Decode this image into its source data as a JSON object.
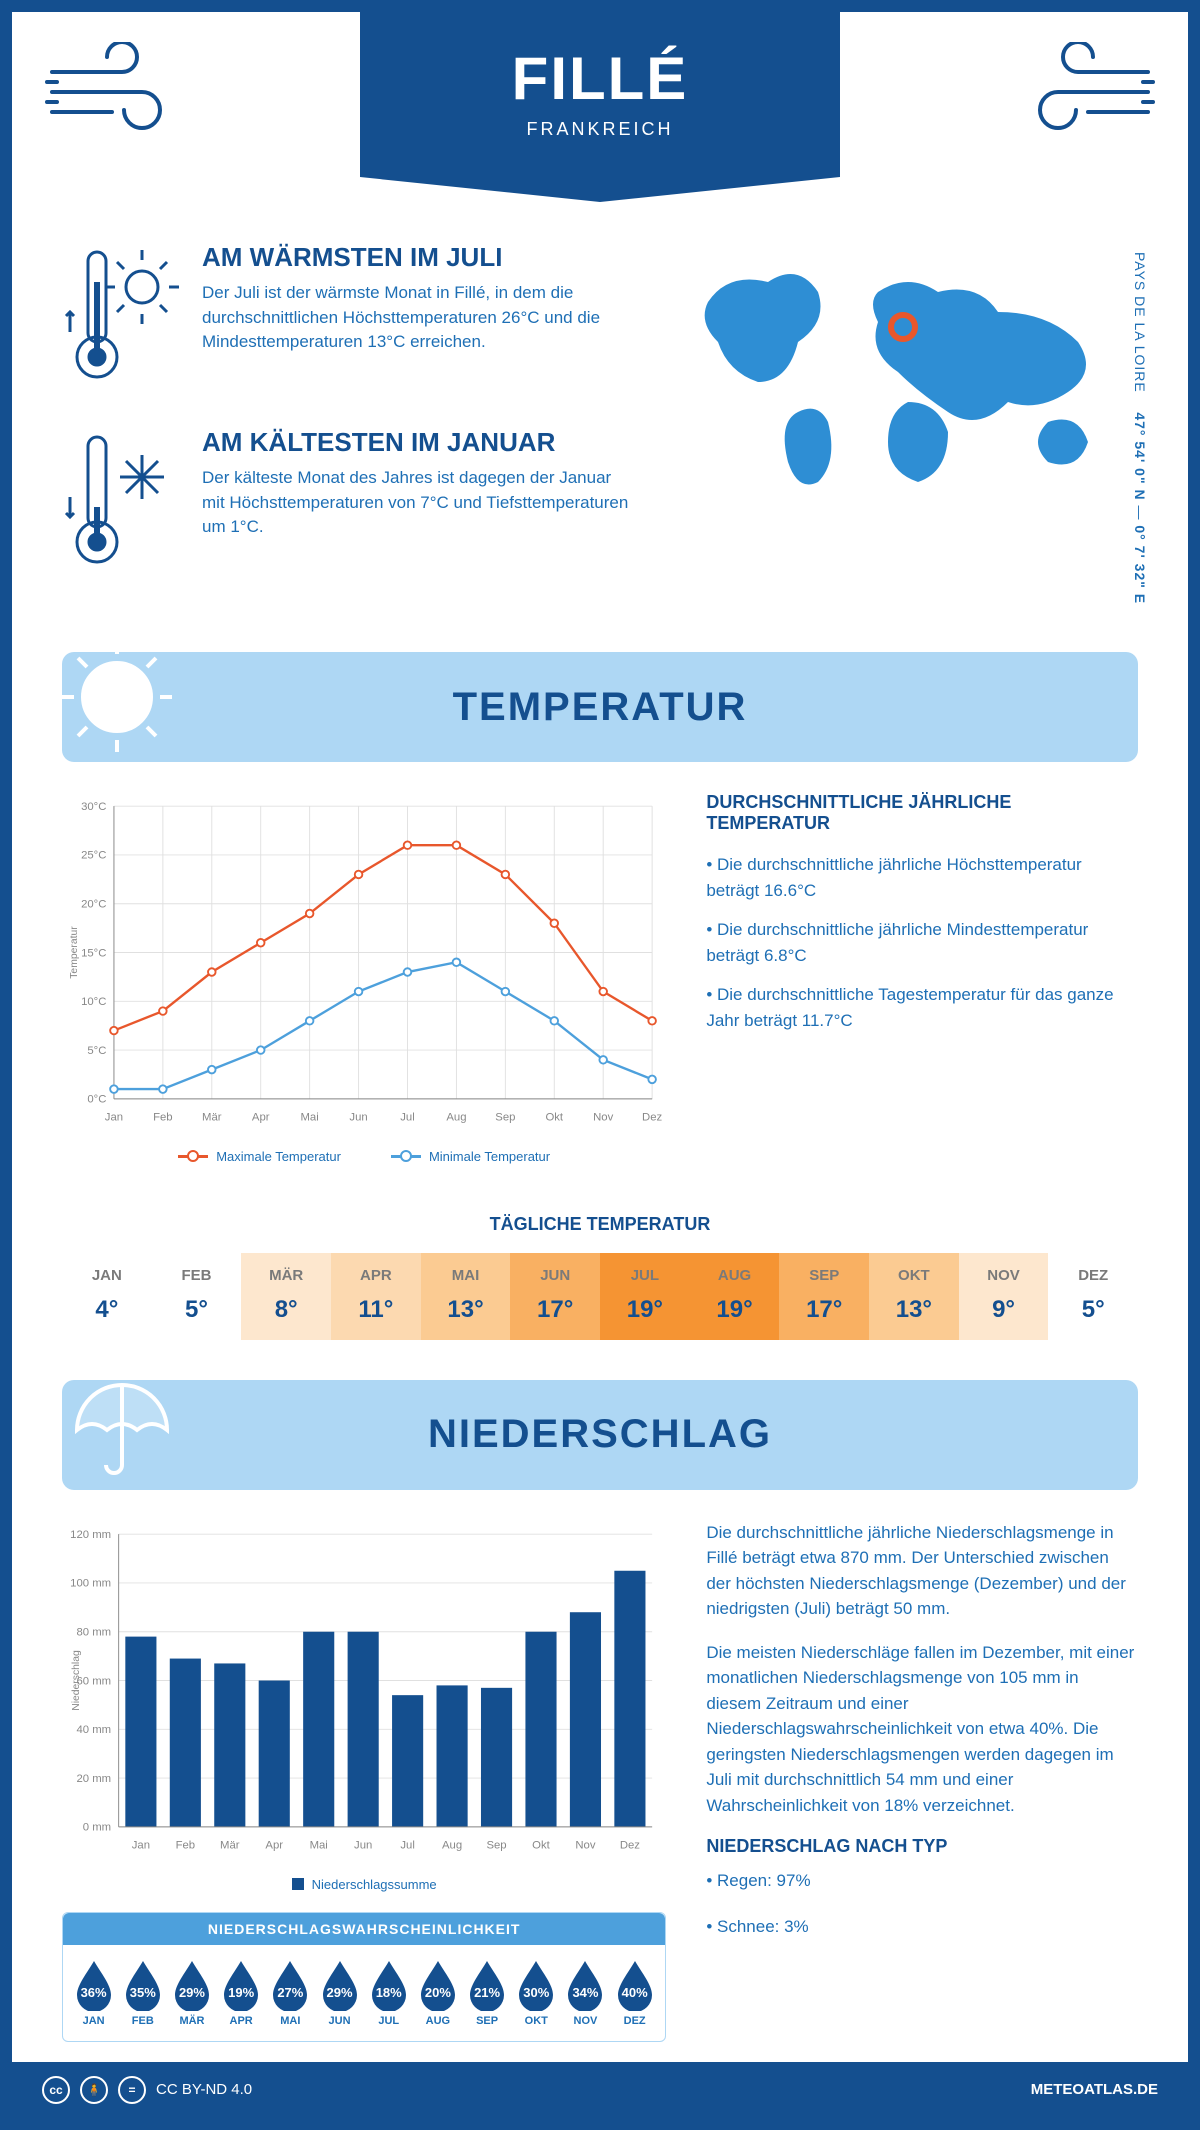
{
  "header": {
    "title": "FILLÉ",
    "country": "FRANKREICH"
  },
  "coords": {
    "lat": "47° 54' 0\" N",
    "lon": "0° 7' 32\" E",
    "region": "PAYS DE LA LOIRE"
  },
  "warm": {
    "title": "AM WÄRMSTEN IM JULI",
    "text": "Der Juli ist der wärmste Monat in Fillé, in dem die durchschnittlichen Höchsttemperaturen 26°C und die Mindesttemperaturen 13°C erreichen."
  },
  "cold": {
    "title": "AM KÄLTESTEN IM JANUAR",
    "text": "Der kälteste Monat des Jahres ist dagegen der Januar mit Höchsttemperaturen von 7°C und Tiefsttemperaturen um 1°C."
  },
  "colors": {
    "primary": "#144f8f",
    "accent": "#1e6fb5",
    "max_line": "#e8572c",
    "min_line": "#4da0dc",
    "section_bg": "#aed7f4",
    "grid": "#e0e0e0",
    "text_gray": "#888888"
  },
  "temp_section": {
    "title": "TEMPERATUR",
    "chart": {
      "type": "line",
      "months": [
        "Jan",
        "Feb",
        "Mär",
        "Apr",
        "Mai",
        "Jun",
        "Jul",
        "Aug",
        "Sep",
        "Okt",
        "Nov",
        "Dez"
      ],
      "max_values": [
        7,
        9,
        13,
        16,
        19,
        23,
        26,
        26,
        23,
        18,
        11,
        8
      ],
      "min_values": [
        1,
        1,
        3,
        5,
        8,
        11,
        13,
        14,
        11,
        8,
        4,
        2
      ],
      "ylim": [
        0,
        30
      ],
      "ytick_step": 5,
      "y_suffix": "°C",
      "ylabel": "Temperatur",
      "max_label": "Maximale Temperatur",
      "min_label": "Minimale Temperatur",
      "max_color": "#e8572c",
      "min_color": "#4da0dc",
      "grid_color": "#e0e0e0"
    },
    "avg_title": "DURCHSCHNITTLICHE JÄHRLICHE TEMPERATUR",
    "bullets": [
      "Die durchschnittliche jährliche Höchsttemperatur beträgt 16.6°C",
      "Die durchschnittliche jährliche Mindesttemperatur beträgt 6.8°C",
      "Die durchschnittliche Tagestemperatur für das ganze Jahr beträgt 11.7°C"
    ],
    "daily_title": "TÄGLICHE TEMPERATUR",
    "daily": {
      "months": [
        "JAN",
        "FEB",
        "MÄR",
        "APR",
        "MAI",
        "JUN",
        "JUL",
        "AUG",
        "SEP",
        "OKT",
        "NOV",
        "DEZ"
      ],
      "values": [
        "4°",
        "5°",
        "8°",
        "11°",
        "13°",
        "17°",
        "19°",
        "19°",
        "17°",
        "13°",
        "9°",
        "5°"
      ],
      "cell_colors": [
        "#ffffff",
        "#ffffff",
        "#fde7ce",
        "#fcd9b0",
        "#fbcb92",
        "#f9b062",
        "#f59433",
        "#f59433",
        "#f9b062",
        "#fbcb92",
        "#fde7ce",
        "#ffffff"
      ]
    }
  },
  "precip_section": {
    "title": "NIEDERSCHLAG",
    "chart": {
      "type": "bar",
      "months": [
        "Jan",
        "Feb",
        "Mär",
        "Apr",
        "Mai",
        "Jun",
        "Jul",
        "Aug",
        "Sep",
        "Okt",
        "Nov",
        "Dez"
      ],
      "values": [
        78,
        69,
        67,
        60,
        80,
        80,
        54,
        58,
        57,
        80,
        88,
        105
      ],
      "ylim": [
        0,
        120
      ],
      "ytick_step": 20,
      "y_suffix": " mm",
      "ylabel": "Niederschlag",
      "bar_color": "#144f8f",
      "grid_color": "#e0e0e0",
      "legend": "Niederschlagssumme"
    },
    "para1": "Die durchschnittliche jährliche Niederschlagsmenge in Fillé beträgt etwa 870 mm. Der Unterschied zwischen der höchsten Niederschlagsmenge (Dezember) und der niedrigsten (Juli) beträgt 50 mm.",
    "para2": "Die meisten Niederschläge fallen im Dezember, mit einer monatlichen Niederschlagsmenge von 105 mm in diesem Zeitraum und einer Niederschlagswahrscheinlichkeit von etwa 40%. Die geringsten Niederschlagsmengen werden dagegen im Juli mit durchschnittlich 54 mm und einer Wahrscheinlichkeit von 18% verzeichnet.",
    "type_title": "NIEDERSCHLAG NACH TYP",
    "type_bullets": [
      "Regen: 97%",
      "Schnee: 3%"
    ],
    "prob_title": "NIEDERSCHLAGSWAHRSCHEINLICHKEIT",
    "prob": {
      "months": [
        "JAN",
        "FEB",
        "MÄR",
        "APR",
        "MAI",
        "JUN",
        "JUL",
        "AUG",
        "SEP",
        "OKT",
        "NOV",
        "DEZ"
      ],
      "values": [
        "36%",
        "35%",
        "29%",
        "19%",
        "27%",
        "29%",
        "18%",
        "20%",
        "21%",
        "30%",
        "34%",
        "40%"
      ],
      "drop_color": "#144f8f"
    }
  },
  "footer": {
    "license": "CC BY-ND 4.0",
    "site": "METEOATLAS.DE"
  }
}
